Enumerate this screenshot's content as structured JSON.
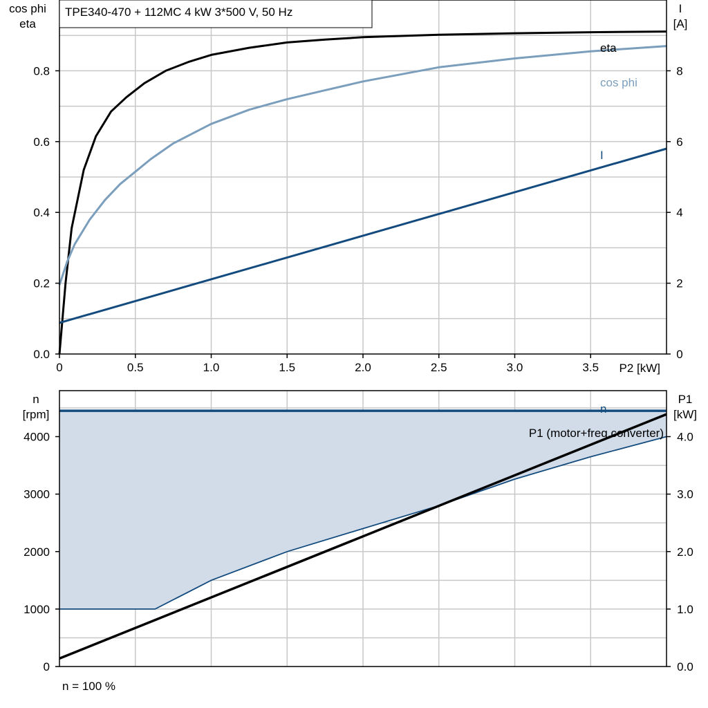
{
  "chart_data": [
    {
      "type": "line",
      "title": "TPE340-470 + 112MC   4 kW   3*500 V, 50 Hz",
      "xlabel": "P2 [kW]",
      "ylabel_left": [
        "cos phi",
        "eta"
      ],
      "ylabel_right": [
        "I",
        "[A]"
      ],
      "xlim": [
        0,
        4.0
      ],
      "ylim_left": [
        0,
        1.0
      ],
      "ylim_right": [
        0,
        10
      ],
      "x_ticks": [
        "0",
        "0.5",
        "1.0",
        "1.5",
        "2.0",
        "2.5",
        "3.0",
        "3.5"
      ],
      "y_ticks_left": [
        "0.0",
        "0.2",
        "0.4",
        "0.6",
        "0.8"
      ],
      "y_ticks_right": [
        "0",
        "2",
        "4",
        "6",
        "8"
      ],
      "grid": true,
      "series": [
        {
          "name": "eta",
          "axis": "left",
          "color": "#000000",
          "points": [
            [
              0,
              0
            ],
            [
              0.04,
              0.2
            ],
            [
              0.08,
              0.355
            ],
            [
              0.16,
              0.52
            ],
            [
              0.24,
              0.615
            ],
            [
              0.34,
              0.685
            ],
            [
              0.44,
              0.725
            ],
            [
              0.56,
              0.765
            ],
            [
              0.7,
              0.8
            ],
            [
              0.85,
              0.825
            ],
            [
              1.0,
              0.845
            ],
            [
              1.25,
              0.865
            ],
            [
              1.5,
              0.88
            ],
            [
              1.75,
              0.888
            ],
            [
              2.0,
              0.895
            ],
            [
              2.5,
              0.902
            ],
            [
              3.0,
              0.906
            ],
            [
              3.5,
              0.909
            ],
            [
              4.0,
              0.911
            ]
          ]
        },
        {
          "name": "cos phi",
          "axis": "left",
          "color": "#7a9ebc",
          "points": [
            [
              0,
              0.195
            ],
            [
              0.05,
              0.26
            ],
            [
              0.1,
              0.31
            ],
            [
              0.2,
              0.38
            ],
            [
              0.3,
              0.435
            ],
            [
              0.4,
              0.48
            ],
            [
              0.5,
              0.515
            ],
            [
              0.6,
              0.55
            ],
            [
              0.75,
              0.595
            ],
            [
              1.0,
              0.65
            ],
            [
              1.25,
              0.69
            ],
            [
              1.5,
              0.72
            ],
            [
              1.75,
              0.745
            ],
            [
              2.0,
              0.77
            ],
            [
              2.5,
              0.81
            ],
            [
              3.0,
              0.835
            ],
            [
              3.5,
              0.855
            ],
            [
              4.0,
              0.87
            ]
          ]
        },
        {
          "name": "I",
          "axis": "right",
          "color": "#134b7e",
          "points": [
            [
              0,
              0.88
            ],
            [
              4.0,
              5.8
            ]
          ]
        }
      ]
    },
    {
      "type": "area",
      "xlim": [
        0,
        4.0
      ],
      "ylabel_left": [
        "n",
        "[rpm]"
      ],
      "ylabel_right": [
        "P1",
        "[kW]"
      ],
      "ylim_left": [
        0,
        4800
      ],
      "ylim_right": [
        0,
        4.8
      ],
      "y_ticks_left": [
        "0",
        "1000",
        "2000",
        "3000",
        "4000"
      ],
      "y_ticks_right": [
        "0.0",
        "1.0",
        "2.0",
        "3.0",
        "4.0"
      ],
      "grid": true,
      "note": "n = 100 %",
      "series": [
        {
          "name": "n",
          "axis": "left",
          "color": "#134b7e",
          "points": [
            [
              0,
              4450
            ],
            [
              4.0,
              4450
            ]
          ]
        },
        {
          "name": "P1 (motor+freq.converter)",
          "axis": "right",
          "color": "#000000",
          "points": [
            [
              0,
              0.14
            ],
            [
              4.0,
              4.39
            ]
          ]
        }
      ],
      "range_lower": {
        "axis": "left",
        "color": "#134b7e",
        "points": [
          [
            0,
            1000
          ],
          [
            0.63,
            1000
          ],
          [
            1.0,
            1500
          ],
          [
            1.5,
            2000
          ],
          [
            2.0,
            2400
          ],
          [
            2.5,
            2800
          ],
          [
            3.0,
            3260
          ],
          [
            3.5,
            3650
          ],
          [
            4.0,
            4000
          ]
        ]
      },
      "range_fill": "#d1dce8"
    }
  ]
}
